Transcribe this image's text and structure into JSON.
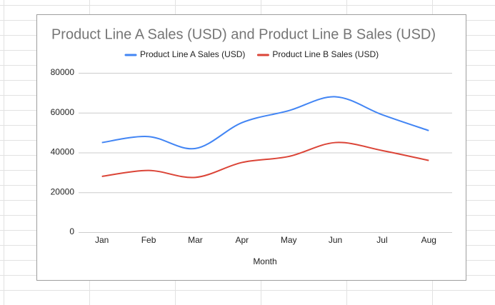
{
  "chart_data": {
    "type": "line",
    "title": "Product Line A Sales (USD) and Product Line B Sales (USD)",
    "x_label": "Month",
    "categories": [
      "Jan",
      "Feb",
      "Mar",
      "Apr",
      "May",
      "Jun",
      "Jul",
      "Aug"
    ],
    "series": [
      {
        "name": "Product Line A Sales (USD)",
        "color": "#4285f4",
        "values": [
          45000,
          48000,
          42000,
          55000,
          61000,
          68000,
          59000,
          51000
        ]
      },
      {
        "name": "Product Line B Sales (USD)",
        "color": "#db4437",
        "values": [
          28000,
          31000,
          27500,
          35000,
          38000,
          45000,
          41000,
          36000
        ]
      }
    ],
    "ylim": [
      0,
      80000
    ],
    "yticks": [
      0,
      20000,
      40000,
      60000,
      80000
    ],
    "grid": true,
    "smooth": true,
    "legend": "top"
  }
}
